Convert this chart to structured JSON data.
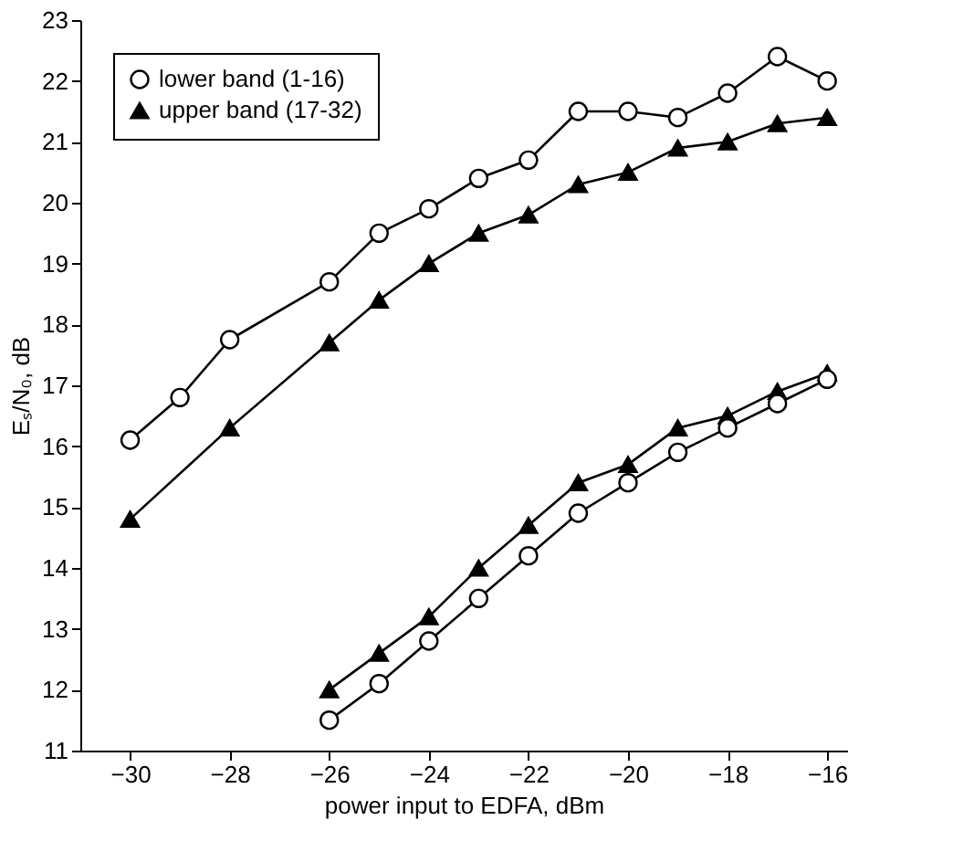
{
  "chart_data": {
    "type": "line",
    "xlabel": "power input to EDFA, dBm",
    "ylabel": "Eₛ/N₀, dB",
    "xlim": [
      -31,
      -15.6
    ],
    "xticks": [
      -30,
      -28,
      -26,
      -24,
      -22,
      -20,
      -18,
      -16
    ],
    "ylim": [
      11,
      23
    ],
    "yticks": [
      11,
      12,
      13,
      14,
      15,
      16,
      17,
      18,
      19,
      20,
      21,
      22,
      23
    ],
    "grid": false,
    "legend": "top left",
    "line_style": "solid",
    "series": [
      {
        "name": "lower band (1-16)",
        "color": "#000000",
        "marker": "circle",
        "x": [
          -30,
          -29,
          -28,
          -26,
          -25,
          -24,
          -23,
          -22,
          -21,
          -20,
          -19,
          -18,
          -17,
          -16
        ],
        "values": [
          16.1,
          16.8,
          17.75,
          18.7,
          19.5,
          19.9,
          20.4,
          20.7,
          21.5,
          21.5,
          21.4,
          21.8,
          22.4,
          22.0
        ]
      },
      {
        "name": "upper band (17-32)",
        "color": "#000000",
        "marker": "triangle",
        "x": [
          -30,
          -28,
          -26,
          -25,
          -24,
          -23,
          -22,
          -21,
          -20,
          -19,
          -18,
          -17,
          -16
        ],
        "values": [
          14.8,
          16.3,
          17.7,
          18.4,
          19.0,
          19.5,
          19.8,
          20.3,
          20.5,
          20.9,
          21.0,
          21.3,
          21.4
        ]
      },
      {
        "color": "#000000",
        "marker": "triangle",
        "x": [
          -26,
          -25,
          -24,
          -23,
          -22,
          -21,
          -20,
          -19,
          -18,
          -17,
          -16
        ],
        "values": [
          12.0,
          12.6,
          13.2,
          14.0,
          14.7,
          15.4,
          15.7,
          16.3,
          16.5,
          16.9,
          17.2
        ]
      },
      {
        "color": "#000000",
        "marker": "circle",
        "x": [
          -26,
          -25,
          -24,
          -23,
          -22,
          -21,
          -20,
          -19,
          -18,
          -17,
          -16
        ],
        "values": [
          11.5,
          12.1,
          12.8,
          13.5,
          14.2,
          14.9,
          15.4,
          15.9,
          16.3,
          16.7,
          17.1
        ]
      }
    ]
  }
}
